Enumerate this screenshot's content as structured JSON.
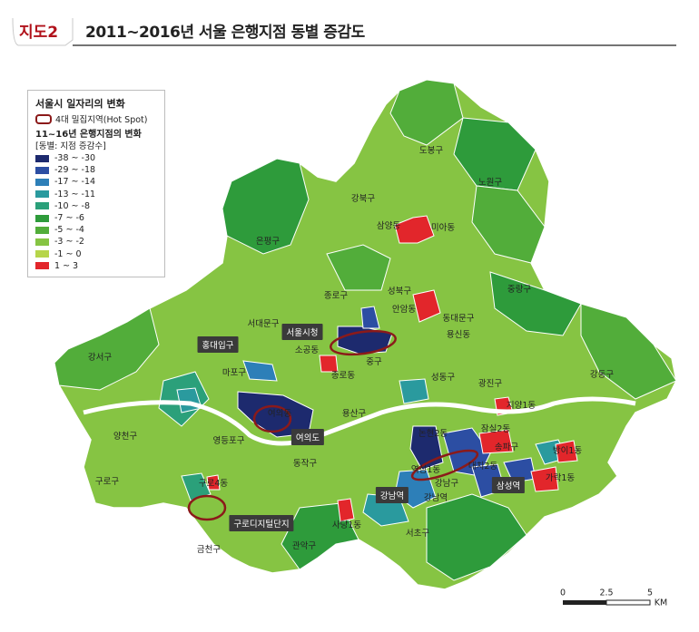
{
  "header": {
    "figure_number": "지도2",
    "title": "2011~2016년 서울 은행지점 동별 증감도"
  },
  "legend": {
    "title": "서울시 일자리의 변화",
    "hotspot_label": "4대 밀집지역(Hot Spot)",
    "subtitle": "11~16년 은행지점의 변화",
    "unit_label": "[동별: 지점 증감수]",
    "classes": [
      {
        "label": "-38 ~ -30",
        "color": "#1d2a6e"
      },
      {
        "label": "-29 ~ -18",
        "color": "#2c4ea3"
      },
      {
        "label": "-17 ~ -14",
        "color": "#2d7fb8"
      },
      {
        "label": "-13 ~ -11",
        "color": "#2a9a9e"
      },
      {
        "label": "-10 ~ -8",
        "color": "#2ba07a"
      },
      {
        "label": "-7 ~ -6",
        "color": "#2e9b3b"
      },
      {
        "label": "-5 ~ -4",
        "color": "#52ad3a"
      },
      {
        "label": "-3 ~ -2",
        "color": "#86c443"
      },
      {
        "label": "-1 ~ 0",
        "color": "#b6d54a"
      },
      {
        "label": "1 ~ 3",
        "color": "#e2262b"
      }
    ],
    "hotspot_color": "#8b1a1a"
  },
  "district_labels": [
    "도봉구",
    "노원구",
    "강북구",
    "미아동",
    "삼양동",
    "은평구",
    "종로구",
    "성북구",
    "중랑구",
    "안암동",
    "서대문구",
    "동대문구",
    "용신동",
    "중구",
    "서울시청",
    "소공동",
    "종로동",
    "강서구",
    "마포구",
    "성동구",
    "광진구",
    "강동구",
    "지양1동",
    "잠실2동",
    "양천구",
    "영등포구",
    "용산구",
    "여의동",
    "송파구",
    "방이1동",
    "논현2동",
    "역삼1동",
    "대치2동",
    "가락1동",
    "구로구",
    "구로4동",
    "동작구",
    "강남구",
    "삼성역",
    "강남역",
    "서초구",
    "사당1동",
    "금천구",
    "관악구"
  ],
  "boxed_labels": [
    "홍대입구",
    "서울시청",
    "여의도",
    "강남역",
    "구로디지털단지",
    "삼성역"
  ],
  "scale": {
    "ticks": [
      "0",
      "2.5",
      "5"
    ],
    "unit": "KM"
  }
}
